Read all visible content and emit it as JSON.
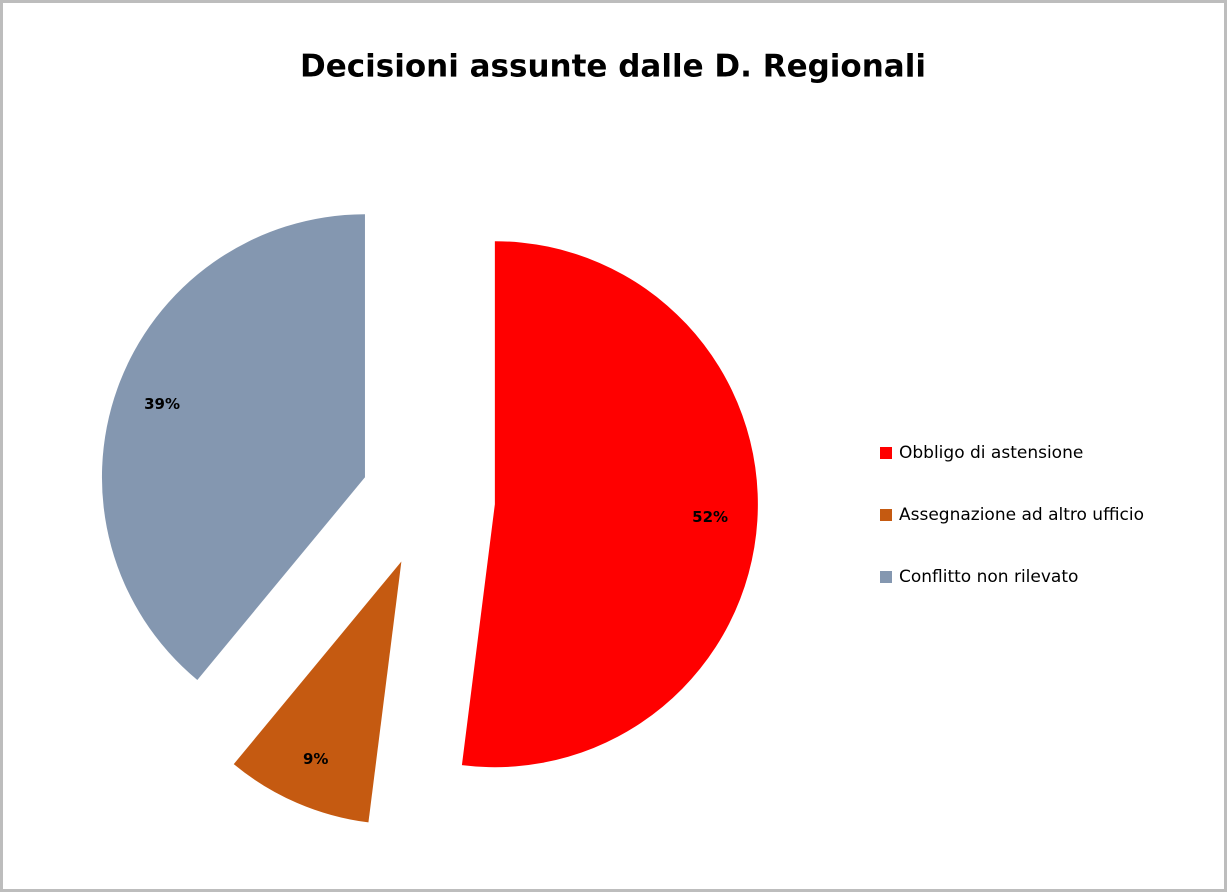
{
  "chart_data": {
    "type": "pie",
    "title": "Decisioni assunte dalle D. Regionali",
    "categories": [
      "Obbligo di astensione",
      "Assegnazione ad altro ufficio",
      "Conflitto non rilevato"
    ],
    "values": [
      52,
      9,
      39
    ],
    "value_labels": [
      "52%",
      "9%",
      "39%"
    ],
    "colors": [
      "#ff0000",
      "#c55a11",
      "#8497b0"
    ],
    "legend": "right"
  }
}
